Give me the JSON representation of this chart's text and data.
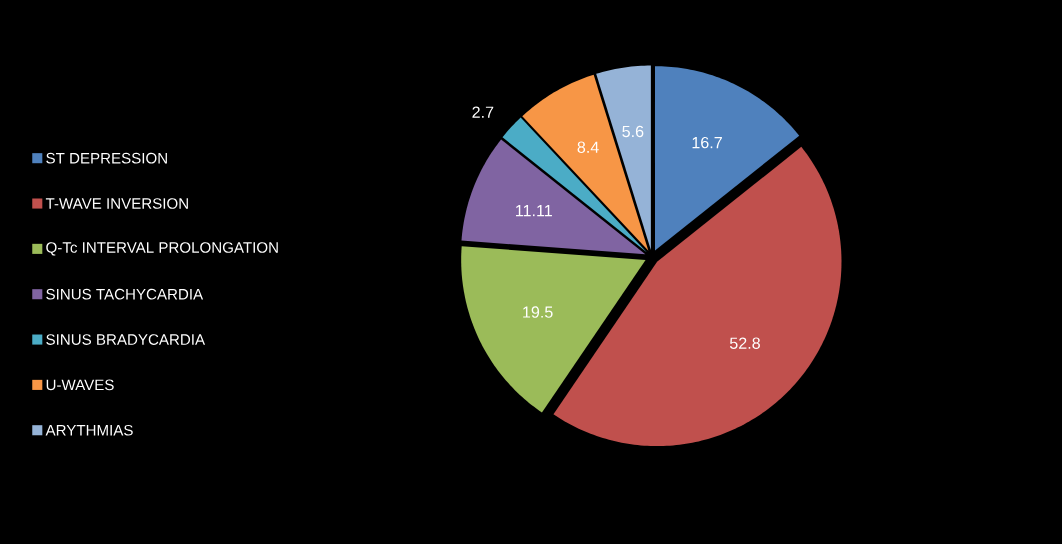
{
  "chart_data": {
    "type": "pie",
    "categories": [
      "ST DEPRESSION",
      "T-WAVE INVERSION",
      "Q-Tc INTERVAL PROLONGATION",
      "SINUS TACHYCARDIA",
      "SINUS BRADYCARDIA",
      "U-WAVES",
      "ARYTHMIAS"
    ],
    "values": [
      16.7,
      52.8,
      19.5,
      11.11,
      2.7,
      8.4,
      5.6
    ],
    "colors": [
      "#4f81bd",
      "#c0504d",
      "#9bbb59",
      "#8064a2",
      "#4bacc6",
      "#f79646",
      "#95b3d7"
    ],
    "data_labels": true,
    "legend": "left"
  }
}
